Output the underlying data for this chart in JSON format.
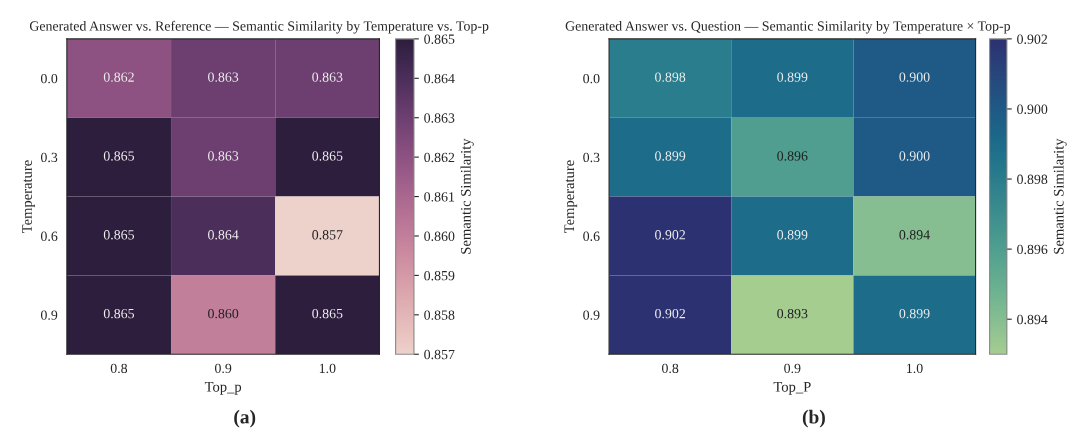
{
  "chart_data": [
    {
      "type": "heatmap",
      "title": "Generated Answer vs. Reference — Semantic Similarity by Temperature vs. Top-p",
      "xlabel": "Top_p",
      "ylabel": "Temperature",
      "clabel": "Semantic Similarity",
      "categories": [
        "0.8",
        "0.9",
        "1.0"
      ],
      "y_categories": [
        "0.0",
        "0.3",
        "0.6",
        "0.9"
      ],
      "cells": [
        [
          0.862,
          0.863,
          0.863
        ],
        [
          0.865,
          0.863,
          0.865
        ],
        [
          0.865,
          0.864,
          0.857
        ],
        [
          0.865,
          0.86,
          0.865
        ]
      ],
      "cell_labels": [
        [
          "0.862",
          "0.863",
          "0.863"
        ],
        [
          "0.865",
          "0.863",
          "0.865"
        ],
        [
          "0.865",
          "0.864",
          "0.857"
        ],
        [
          "0.865",
          "0.860",
          "0.865"
        ]
      ],
      "clim": [
        0.857,
        0.865
      ],
      "cticks": [
        0.857,
        0.858,
        0.859,
        {
          "value": 0.86,
          "label": "0.860"
        },
        0.861,
        0.862,
        0.863,
        0.864,
        0.865
      ],
      "data_labels": true,
      "annotations": [
        "(a)"
      ]
    },
    {
      "type": "heatmap",
      "title": "Generated Answer vs. Question — Semantic Similarity by Temperature × Top-p",
      "xlabel": "Top_P",
      "ylabel": "Temperature",
      "clabel": "Semantic Similarity",
      "categories": [
        "0.8",
        "0.9",
        "1.0"
      ],
      "y_categories": [
        "0.0",
        "0.3",
        "0.6",
        "0.9"
      ],
      "cells": [
        [
          0.898,
          0.899,
          0.9
        ],
        [
          0.899,
          0.896,
          0.9
        ],
        [
          0.902,
          0.899,
          0.894
        ],
        [
          0.902,
          0.893,
          0.899
        ]
      ],
      "cell_labels": [
        [
          "0.898",
          "0.899",
          "0.900"
        ],
        [
          "0.899",
          "0.896",
          "0.900"
        ],
        [
          "0.902",
          "0.899",
          "0.894"
        ],
        [
          "0.902",
          "0.893",
          "0.899"
        ]
      ],
      "clim": [
        0.893,
        0.902
      ],
      "cticks": [
        0.894,
        0.896,
        0.898,
        {
          "value": 0.9,
          "label": "0.900"
        },
        0.902
      ],
      "data_labels": true,
      "annotations": [
        "(b)"
      ]
    }
  ]
}
